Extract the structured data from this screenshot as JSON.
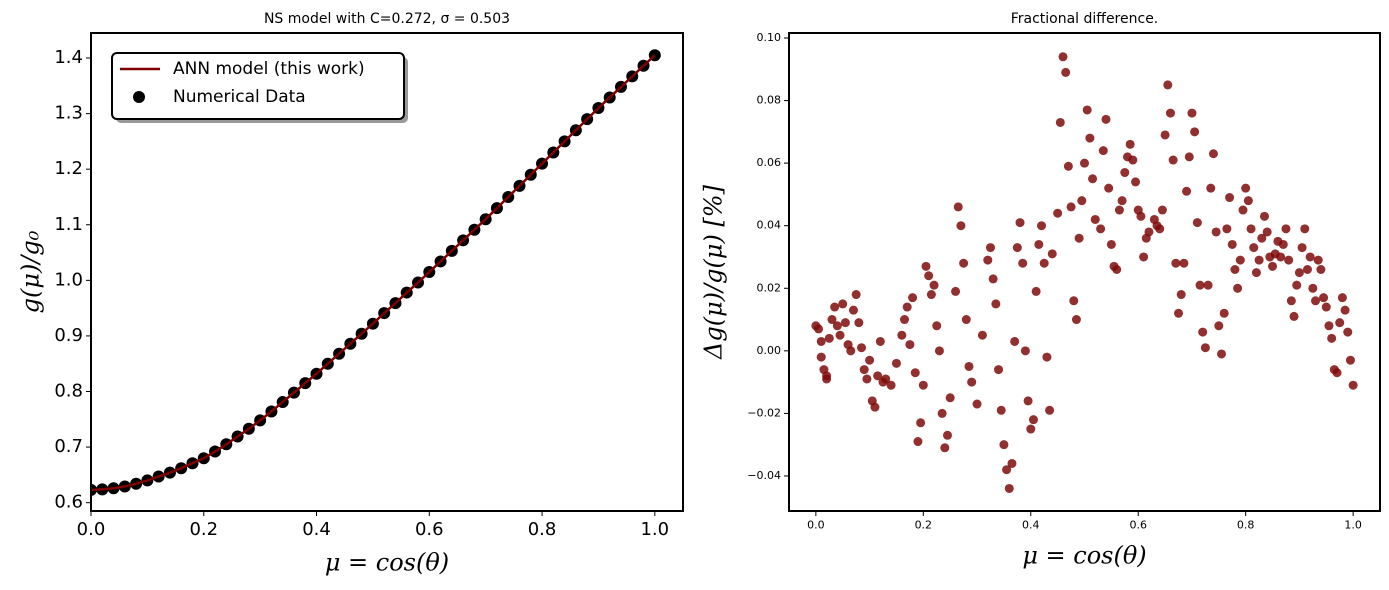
{
  "chart_data": [
    {
      "type": "line_scatter",
      "title": "NS model with C=0.272, σ = 0.503",
      "xlabel": "μ = cos(θ)",
      "ylabel": "g(μ)/g₀",
      "legend": "upper left",
      "xlim": [
        0,
        1.05
      ],
      "xticks": [
        {
          "value": 0,
          "label": "0.0"
        },
        {
          "value": 0.2,
          "label": "0.2"
        },
        {
          "value": 0.4,
          "label": "0.4"
        },
        {
          "value": 0.6,
          "label": "0.6"
        },
        {
          "value": 0.8,
          "label": "0.8"
        },
        {
          "value": 1,
          "label": "1.0"
        }
      ],
      "ylim": [
        0.585,
        1.445
      ],
      "yticks": [
        0.6,
        0.7,
        0.8,
        0.9,
        {
          "value": 1,
          "label": "1.0"
        },
        1.1,
        1.2,
        1.3,
        1.4
      ],
      "x": [
        0,
        0.02,
        0.04,
        0.06,
        0.08,
        0.1,
        0.12,
        0.14,
        0.16,
        0.18,
        0.2,
        0.22,
        0.24,
        0.26,
        0.28,
        0.3,
        0.32,
        0.34,
        0.36,
        0.38,
        0.4,
        0.42,
        0.44,
        0.46,
        0.48,
        0.5,
        0.52,
        0.54,
        0.56,
        0.58,
        0.6,
        0.62,
        0.64,
        0.66,
        0.68,
        0.7,
        0.72,
        0.74,
        0.76,
        0.78,
        0.8,
        0.82,
        0.84,
        0.86,
        0.88,
        0.9,
        0.92,
        0.94,
        0.96,
        0.98,
        1
      ],
      "series": [
        {
          "name": "ANN model (this work)",
          "type": "line",
          "color": "#800000",
          "values": [
            0.623,
            0.624,
            0.626,
            0.629,
            0.634,
            0.64,
            0.647,
            0.654,
            0.662,
            0.671,
            0.68,
            0.692,
            0.705,
            0.719,
            0.733,
            0.748,
            0.764,
            0.781,
            0.798,
            0.815,
            0.832,
            0.85,
            0.868,
            0.886,
            0.904,
            0.922,
            0.941,
            0.959,
            0.978,
            0.996,
            1.015,
            1.034,
            1.053,
            1.072,
            1.091,
            1.11,
            1.13,
            1.15,
            1.17,
            1.19,
            1.21,
            1.23,
            1.25,
            1.27,
            1.29,
            1.31,
            1.329,
            1.348,
            1.367,
            1.386,
            1.405
          ]
        },
        {
          "name": "Numerical Data",
          "type": "scatter",
          "color": "#000000",
          "values": [
            0.623,
            0.624,
            0.626,
            0.629,
            0.634,
            0.64,
            0.647,
            0.654,
            0.662,
            0.671,
            0.68,
            0.692,
            0.705,
            0.719,
            0.733,
            0.748,
            0.764,
            0.781,
            0.798,
            0.815,
            0.832,
            0.85,
            0.868,
            0.886,
            0.904,
            0.922,
            0.941,
            0.959,
            0.978,
            0.996,
            1.015,
            1.034,
            1.053,
            1.072,
            1.091,
            1.11,
            1.13,
            1.15,
            1.17,
            1.19,
            1.21,
            1.23,
            1.25,
            1.27,
            1.29,
            1.31,
            1.329,
            1.348,
            1.367,
            1.386,
            1.405
          ]
        }
      ]
    },
    {
      "type": "scatter",
      "title": "Fractional difference.",
      "xlabel": "μ = cos(θ)",
      "ylabel": "Δg(μ)/g(μ)  [%]",
      "color": "#7f0a0a",
      "xlim": [
        -0.05,
        1.05
      ],
      "xticks": [
        {
          "value": 0,
          "label": "0.0"
        },
        {
          "value": 0.2,
          "label": "0.2"
        },
        {
          "value": 0.4,
          "label": "0.4"
        },
        {
          "value": 0.6,
          "label": "0.6"
        },
        {
          "value": 0.8,
          "label": "0.8"
        },
        {
          "value": 1,
          "label": "1.0"
        }
      ],
      "ylim": [
        -0.0512,
        0.1016
      ],
      "yticks": [
        {
          "value": -0.04,
          "label": "−0.04"
        },
        {
          "value": -0.02,
          "label": "−0.02"
        },
        {
          "value": 0,
          "label": "0.00"
        },
        {
          "value": 0.02,
          "label": "0.02"
        },
        {
          "value": 0.04,
          "label": "0.04"
        },
        {
          "value": 0.06,
          "label": "0.06"
        },
        {
          "value": 0.08,
          "label": "0.08"
        },
        {
          "value": 0.1,
          "label": "0.10"
        }
      ],
      "x": [
        0,
        0.005,
        0.01,
        0.01,
        0.015,
        0.02,
        0.02,
        0.025,
        0.03,
        0.035,
        0.04,
        0.045,
        0.05,
        0.055,
        0.06,
        0.065,
        0.07,
        0.075,
        0.08,
        0.085,
        0.09,
        0.095,
        0.1,
        0.105,
        0.11,
        0.115,
        0.12,
        0.125,
        0.13,
        0.14,
        0.15,
        0.16,
        0.165,
        0.17,
        0.175,
        0.18,
        0.185,
        0.19,
        0.195,
        0.2,
        0.205,
        0.21,
        0.215,
        0.22,
        0.225,
        0.23,
        0.235,
        0.24,
        0.245,
        0.25,
        0.26,
        0.265,
        0.27,
        0.275,
        0.28,
        0.285,
        0.29,
        0.3,
        0.31,
        0.32,
        0.325,
        0.33,
        0.335,
        0.34,
        0.345,
        0.35,
        0.355,
        0.36,
        0.365,
        0.37,
        0.375,
        0.38,
        0.385,
        0.39,
        0.395,
        0.4,
        0.405,
        0.41,
        0.415,
        0.42,
        0.425,
        0.43,
        0.435,
        0.44,
        0.45,
        0.455,
        0.46,
        0.465,
        0.47,
        0.475,
        0.48,
        0.485,
        0.49,
        0.495,
        0.5,
        0.505,
        0.51,
        0.515,
        0.52,
        0.53,
        0.535,
        0.54,
        0.545,
        0.55,
        0.555,
        0.56,
        0.565,
        0.57,
        0.575,
        0.58,
        0.585,
        0.59,
        0.595,
        0.6,
        0.605,
        0.61,
        0.615,
        0.62,
        0.63,
        0.635,
        0.64,
        0.645,
        0.65,
        0.655,
        0.66,
        0.665,
        0.67,
        0.675,
        0.68,
        0.685,
        0.69,
        0.695,
        0.7,
        0.705,
        0.71,
        0.715,
        0.72,
        0.725,
        0.73,
        0.735,
        0.74,
        0.745,
        0.75,
        0.755,
        0.76,
        0.765,
        0.77,
        0.775,
        0.78,
        0.785,
        0.79,
        0.795,
        0.8,
        0.805,
        0.81,
        0.815,
        0.82,
        0.825,
        0.83,
        0.835,
        0.84,
        0.845,
        0.85,
        0.855,
        0.86,
        0.865,
        0.87,
        0.875,
        0.88,
        0.885,
        0.89,
        0.895,
        0.9,
        0.905,
        0.91,
        0.915,
        0.92,
        0.925,
        0.93,
        0.935,
        0.94,
        0.945,
        0.95,
        0.955,
        0.96,
        0.965,
        0.97,
        0.975,
        0.98,
        0.985,
        0.99,
        0.995,
        1
      ],
      "values": [
        0.008,
        0.007,
        0.003,
        -0.002,
        -0.006,
        -0.009,
        -0.008,
        0.004,
        0.01,
        0.014,
        0.008,
        0.005,
        0.015,
        0.009,
        0.002,
        0,
        0.013,
        0.018,
        0.009,
        0.001,
        -0.006,
        -0.009,
        -0.003,
        -0.016,
        -0.018,
        -0.008,
        0.003,
        -0.01,
        -0.009,
        -0.011,
        -0.004,
        0.005,
        0.01,
        0.014,
        0.002,
        0.017,
        -0.007,
        -0.029,
        -0.023,
        -0.011,
        0.027,
        0.024,
        0.018,
        0.021,
        0.008,
        0,
        -0.02,
        -0.031,
        -0.027,
        -0.015,
        0.019,
        0.046,
        0.04,
        0.028,
        0.01,
        -0.005,
        -0.01,
        -0.017,
        0.005,
        0.029,
        0.033,
        0.023,
        0.015,
        -0.006,
        -0.019,
        -0.03,
        -0.038,
        -0.044,
        -0.036,
        0.003,
        0.033,
        0.041,
        0.028,
        0,
        -0.016,
        -0.025,
        -0.022,
        0.019,
        0.034,
        0.04,
        0.028,
        -0.002,
        -0.019,
        0.031,
        0.044,
        0.073,
        0.094,
        0.089,
        0.059,
        0.046,
        0.016,
        0.01,
        0.036,
        0.048,
        0.06,
        0.077,
        0.068,
        0.055,
        0.042,
        0.039,
        0.064,
        0.074,
        0.052,
        0.034,
        0.027,
        0.026,
        0.045,
        0.048,
        0.057,
        0.062,
        0.066,
        0.061,
        0.054,
        0.045,
        0.043,
        0.03,
        0.036,
        0.038,
        0.042,
        0.04,
        0.039,
        0.045,
        0.069,
        0.085,
        0.076,
        0.061,
        0.028,
        0.012,
        0.018,
        0.028,
        0.051,
        0.062,
        0.076,
        0.07,
        0.041,
        0.021,
        0.006,
        0.001,
        0.021,
        0.052,
        0.063,
        0.038,
        0.008,
        -0.001,
        0.012,
        0.039,
        0.049,
        0.034,
        0.026,
        0.02,
        0.029,
        0.045,
        0.052,
        0.048,
        0.039,
        0.033,
        0.025,
        0.029,
        0.036,
        0.043,
        0.038,
        0.03,
        0.027,
        0.031,
        0.035,
        0.03,
        0.034,
        0.039,
        0.029,
        0.016,
        0.011,
        0.021,
        0.025,
        0.033,
        0.039,
        0.026,
        0.03,
        0.02,
        0.016,
        0.029,
        0.026,
        0.017,
        0.014,
        0.008,
        0.004,
        -0.006,
        -0.007,
        0.009,
        0.017,
        0.013,
        0.006,
        -0.003,
        -0.011
      ]
    }
  ]
}
